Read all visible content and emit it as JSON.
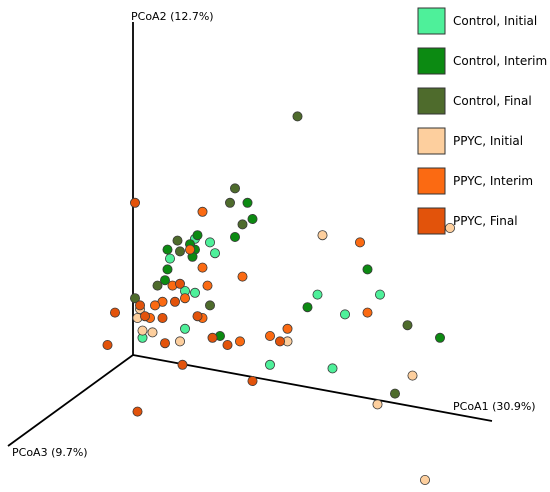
{
  "chart_data": {
    "type": "scatter",
    "projection": "3d",
    "axes": {
      "x": {
        "label": "PCoA1 (30.9%)"
      },
      "y": {
        "label": "PCoA2 (12.7%)"
      },
      "z": {
        "label": "PCoA3 (9.7%)"
      }
    },
    "grid": false,
    "legend_position": "top-right",
    "series": [
      {
        "name": "Control, Initial",
        "color": "#4ef09a",
        "points": [
          [
            -0.32,
            0.34
          ],
          [
            -0.26,
            0.32
          ],
          [
            -0.42,
            0.23
          ],
          [
            -0.32,
            0.04
          ],
          [
            -0.24,
            0.26
          ],
          [
            -0.36,
            0.05
          ],
          [
            0.17,
            0.03
          ],
          [
            0.28,
            -0.08
          ],
          [
            0.42,
            0.03
          ],
          [
            -0.53,
            -0.21
          ],
          [
            -0.02,
            -0.36
          ],
          [
            0.23,
            -0.38
          ],
          [
            -0.36,
            -0.16
          ]
        ]
      },
      {
        "name": "Control, Interim",
        "color": "#0c8a12",
        "points": [
          [
            -0.43,
            0.28
          ],
          [
            -0.32,
            0.28
          ],
          [
            -0.34,
            0.31
          ],
          [
            -0.31,
            0.36
          ],
          [
            -0.33,
            0.24
          ],
          [
            -0.43,
            0.17
          ],
          [
            -0.11,
            0.54
          ],
          [
            -0.09,
            0.45
          ],
          [
            -0.44,
            0.11
          ],
          [
            -0.16,
            0.35
          ],
          [
            0.13,
            -0.04
          ],
          [
            0.37,
            0.17
          ],
          [
            0.66,
            -0.21
          ],
          [
            -0.22,
            -0.2
          ]
        ]
      },
      {
        "name": "Control, Final",
        "color": "#4e6b2c",
        "points": [
          [
            0.09,
            1.02
          ],
          [
            -0.16,
            0.62
          ],
          [
            -0.18,
            0.54
          ],
          [
            -0.13,
            0.42
          ],
          [
            -0.39,
            0.33
          ],
          [
            -0.38,
            0.27
          ],
          [
            -0.47,
            0.08
          ],
          [
            -0.56,
            0.01
          ],
          [
            -0.26,
            -0.03
          ],
          [
            0.53,
            -0.14
          ],
          [
            0.48,
            -0.52
          ]
        ]
      },
      {
        "name": "PPYC, Initial",
        "color": "#fdcf9e",
        "points": [
          [
            -0.55,
            -0.1
          ],
          [
            -0.53,
            -0.17
          ],
          [
            -0.49,
            -0.18
          ],
          [
            -0.54,
            -0.05
          ],
          [
            0.19,
            0.36
          ],
          [
            0.05,
            -0.23
          ],
          [
            -0.38,
            -0.23
          ],
          [
            0.7,
            0.4
          ],
          [
            0.55,
            -0.42
          ],
          [
            0.41,
            -0.58
          ],
          [
            0.6,
            -1.0
          ]
        ]
      },
      {
        "name": "PPYC, Interim",
        "color": "#fb6a12",
        "points": [
          [
            -0.34,
            0.28
          ],
          [
            -0.29,
            0.49
          ],
          [
            -0.29,
            0.18
          ],
          [
            -0.27,
            0.08
          ],
          [
            -0.41,
            0.08
          ],
          [
            -0.36,
            0.01
          ],
          [
            -0.45,
            -0.01
          ],
          [
            -0.48,
            -0.03
          ],
          [
            -0.5,
            -0.1
          ],
          [
            -0.29,
            -0.1
          ],
          [
            -0.13,
            0.13
          ],
          [
            -0.14,
            -0.23
          ],
          [
            0.34,
            0.32
          ],
          [
            0.05,
            -0.16
          ],
          [
            -0.02,
            -0.2
          ],
          [
            0.37,
            -0.07
          ]
        ]
      },
      {
        "name": "PPYC, Final",
        "color": "#e2530b",
        "points": [
          [
            -0.56,
            0.54
          ],
          [
            -0.38,
            0.09
          ],
          [
            -0.52,
            -0.09
          ],
          [
            -0.45,
            -0.1
          ],
          [
            -0.64,
            -0.07
          ],
          [
            -0.54,
            -0.03
          ],
          [
            -0.4,
            -0.01
          ],
          [
            -0.31,
            -0.09
          ],
          [
            -0.25,
            -0.21
          ],
          [
            -0.19,
            -0.25
          ],
          [
            0.02,
            -0.23
          ],
          [
            -0.44,
            -0.24
          ],
          [
            -0.37,
            -0.36
          ],
          [
            -0.09,
            -0.45
          ],
          [
            -0.67,
            -0.25
          ],
          [
            -0.55,
            -0.62
          ]
        ]
      }
    ]
  }
}
